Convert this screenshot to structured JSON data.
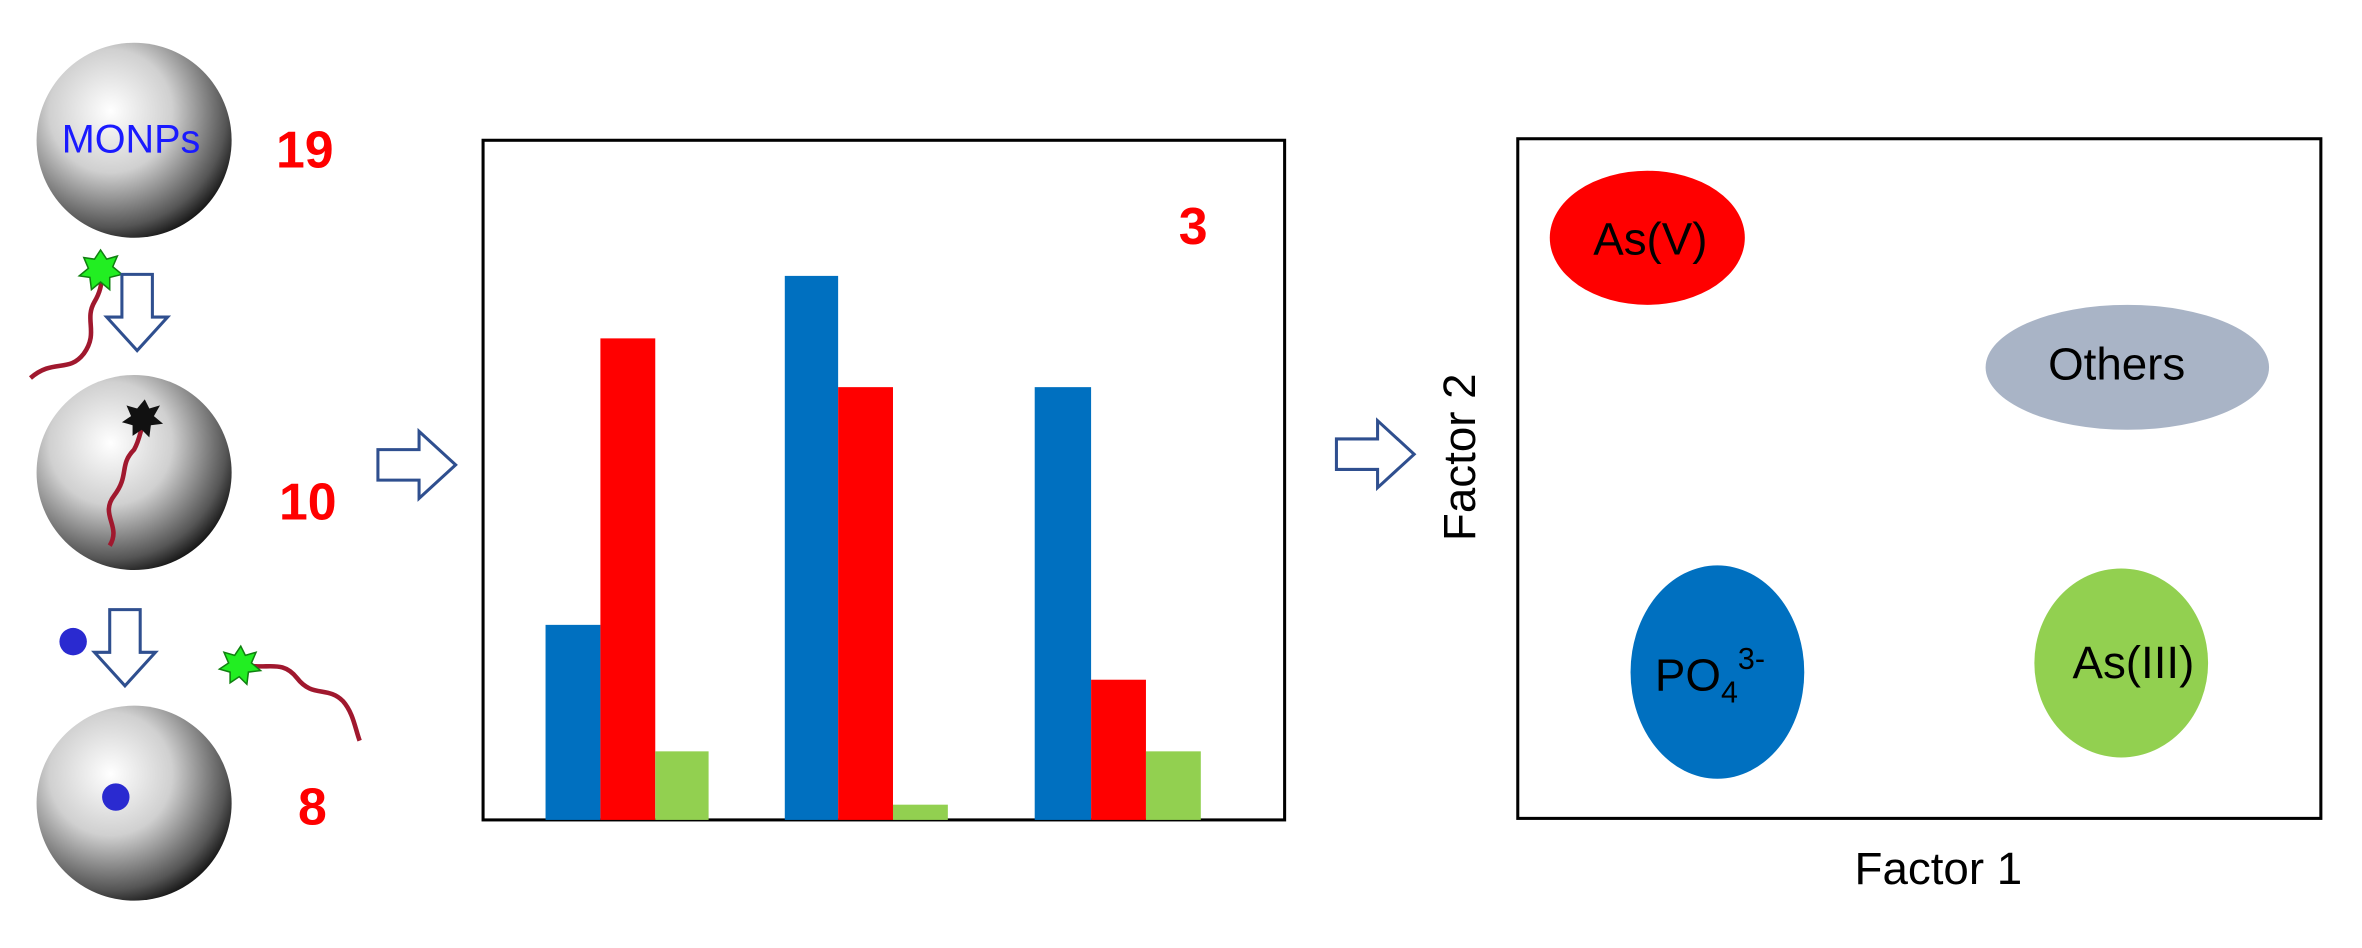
{
  "left_panel": {
    "particle_label": "MONPs",
    "counts": [
      "19",
      "10",
      "8"
    ]
  },
  "bar_panel": {
    "label": "3"
  },
  "score_plot": {
    "x_label": "Factor 1",
    "y_label": "Factor 2",
    "clusters": [
      {
        "label": "As(V)"
      },
      {
        "label": "Others"
      },
      {
        "label": {
          "base": "PO",
          "sub": "4",
          "sup": "3-"
        }
      },
      {
        "label": "As(III)"
      }
    ]
  }
}
